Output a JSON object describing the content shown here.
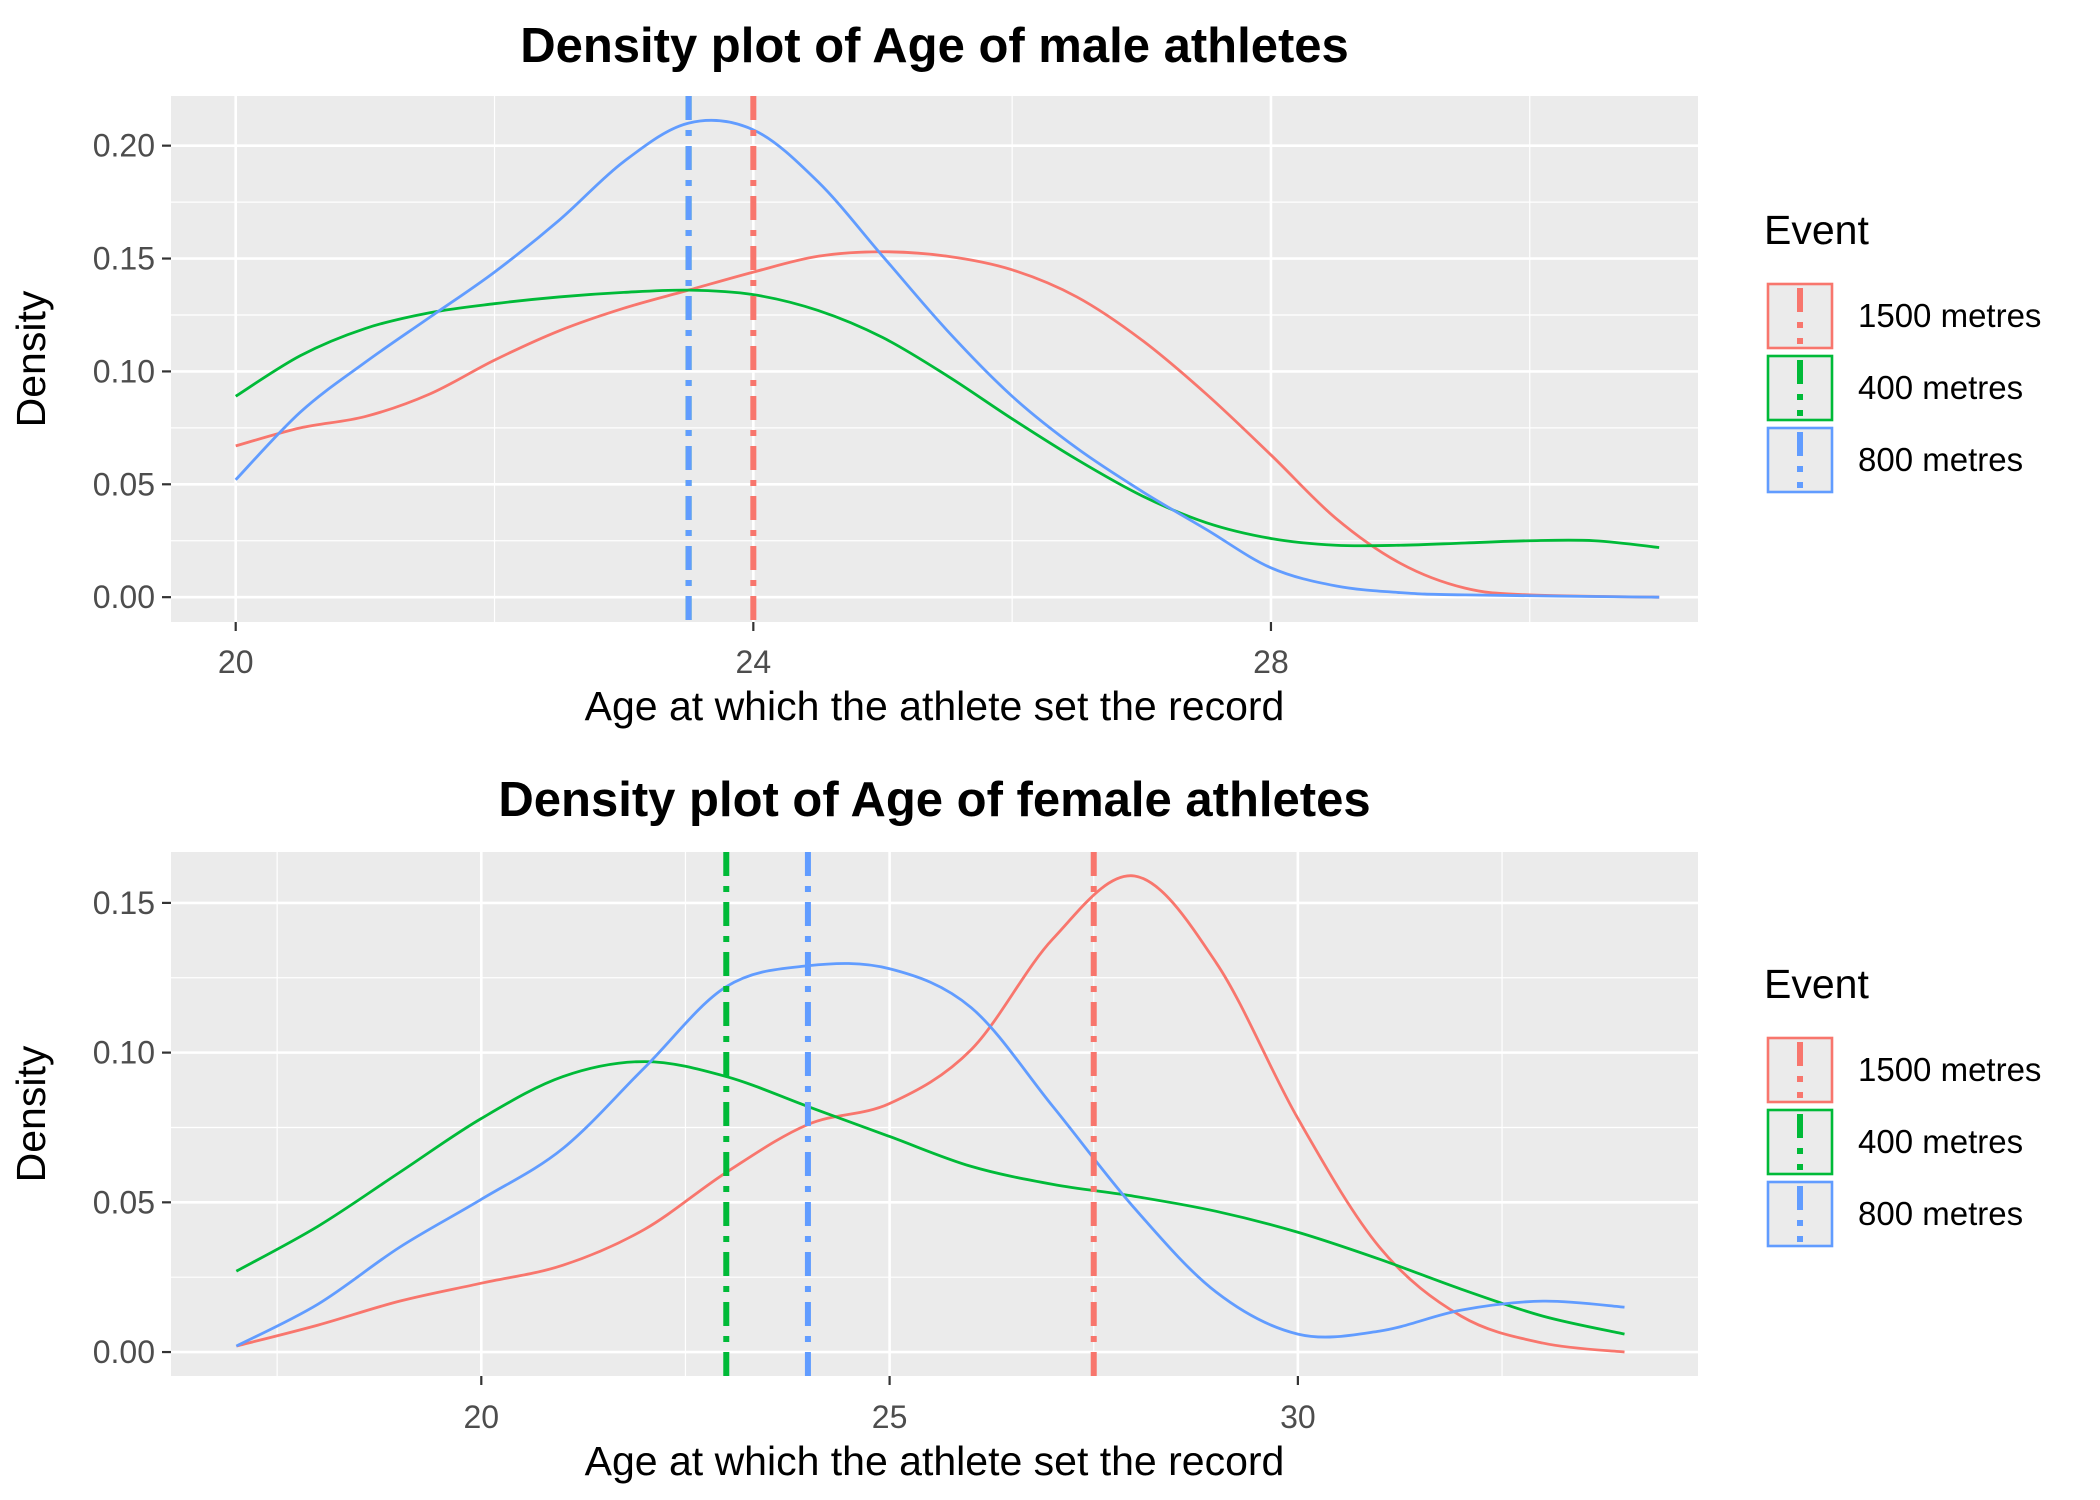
{
  "chart_data": [
    {
      "type": "line",
      "title": "Density plot of Age of male athletes",
      "xlabel": "Age at which the athlete set the record",
      "ylabel": "Density",
      "xlim": [
        19.5,
        31.3
      ],
      "ylim": [
        -0.011,
        0.222
      ],
      "xticks": [
        20,
        24,
        28
      ],
      "yticks": [
        0.0,
        0.05,
        0.1,
        0.15,
        0.2
      ],
      "ytick_labels": [
        "0.00",
        "0.05",
        "0.10",
        "0.15",
        "0.20"
      ],
      "grid": true,
      "legend_title": "Event",
      "legend_position": "right",
      "series": [
        {
          "name": "1500 metres",
          "color": "#F8766D",
          "points": [
            [
              20,
              0.067
            ],
            [
              20.5,
              0.075
            ],
            [
              21,
              0.08
            ],
            [
              21.5,
              0.09
            ],
            [
              22,
              0.105
            ],
            [
              22.5,
              0.118
            ],
            [
              23,
              0.128
            ],
            [
              23.5,
              0.136
            ],
            [
              24,
              0.144
            ],
            [
              24.5,
              0.151
            ],
            [
              25,
              0.153
            ],
            [
              25.5,
              0.151
            ],
            [
              26,
              0.145
            ],
            [
              26.5,
              0.133
            ],
            [
              27,
              0.114
            ],
            [
              27.5,
              0.09
            ],
            [
              28,
              0.063
            ],
            [
              28.5,
              0.035
            ],
            [
              29,
              0.015
            ],
            [
              29.5,
              0.004
            ],
            [
              30,
              0.001
            ],
            [
              31,
              0.0
            ]
          ],
          "mean": 24.0
        },
        {
          "name": "400 metres",
          "color": "#00BA38",
          "points": [
            [
              20,
              0.089
            ],
            [
              20.5,
              0.107
            ],
            [
              21,
              0.119
            ],
            [
              21.5,
              0.126
            ],
            [
              22,
              0.13
            ],
            [
              22.5,
              0.133
            ],
            [
              23,
              0.135
            ],
            [
              23.5,
              0.136
            ],
            [
              24,
              0.134
            ],
            [
              24.5,
              0.127
            ],
            [
              25,
              0.115
            ],
            [
              25.5,
              0.098
            ],
            [
              26,
              0.079
            ],
            [
              26.5,
              0.061
            ],
            [
              27,
              0.045
            ],
            [
              27.5,
              0.033
            ],
            [
              28,
              0.026
            ],
            [
              28.5,
              0.023
            ],
            [
              29,
              0.023
            ],
            [
              29.5,
              0.024
            ],
            [
              30,
              0.025
            ],
            [
              30.5,
              0.025
            ],
            [
              31,
              0.022
            ]
          ],
          "mean": 23.5
        },
        {
          "name": "800 metres",
          "color": "#619CFF",
          "points": [
            [
              20,
              0.052
            ],
            [
              20.5,
              0.082
            ],
            [
              21,
              0.104
            ],
            [
              21.5,
              0.124
            ],
            [
              22,
              0.144
            ],
            [
              22.5,
              0.167
            ],
            [
              23,
              0.193
            ],
            [
              23.5,
              0.21
            ],
            [
              24,
              0.207
            ],
            [
              24.5,
              0.184
            ],
            [
              25,
              0.151
            ],
            [
              25.5,
              0.118
            ],
            [
              26,
              0.089
            ],
            [
              26.5,
              0.066
            ],
            [
              27,
              0.047
            ],
            [
              27.5,
              0.03
            ],
            [
              28,
              0.013
            ],
            [
              28.5,
              0.005
            ],
            [
              29,
              0.002
            ],
            [
              29.5,
              0.001
            ],
            [
              31,
              0.0
            ]
          ],
          "mean": 23.5
        }
      ]
    },
    {
      "type": "line",
      "title": "Density plot of Age of female athletes",
      "xlabel": "Age at which the athlete set the record",
      "ylabel": "Density",
      "xlim": [
        16.2,
        34.9
      ],
      "ylim": [
        -0.008,
        0.167
      ],
      "xticks": [
        20,
        25,
        30
      ],
      "yticks": [
        0.0,
        0.05,
        0.1,
        0.15
      ],
      "ytick_labels": [
        "0.00",
        "0.05",
        "0.10",
        "0.15"
      ],
      "grid": true,
      "legend_title": "Event",
      "legend_position": "right",
      "series": [
        {
          "name": "1500 metres",
          "color": "#F8766D",
          "points": [
            [
              17,
              0.002
            ],
            [
              18,
              0.009
            ],
            [
              19,
              0.017
            ],
            [
              20,
              0.023
            ],
            [
              21,
              0.029
            ],
            [
              22,
              0.041
            ],
            [
              23,
              0.06
            ],
            [
              24,
              0.076
            ],
            [
              25,
              0.083
            ],
            [
              26,
              0.101
            ],
            [
              27,
              0.138
            ],
            [
              28,
              0.159
            ],
            [
              29,
              0.13
            ],
            [
              30,
              0.078
            ],
            [
              31,
              0.035
            ],
            [
              32,
              0.012
            ],
            [
              33,
              0.003
            ],
            [
              34,
              0.0
            ]
          ],
          "mean": 27.5
        },
        {
          "name": "400 metres",
          "color": "#00BA38",
          "points": [
            [
              17,
              0.027
            ],
            [
              18,
              0.042
            ],
            [
              19,
              0.06
            ],
            [
              20,
              0.078
            ],
            [
              21,
              0.092
            ],
            [
              22,
              0.097
            ],
            [
              23,
              0.092
            ],
            [
              24,
              0.082
            ],
            [
              25,
              0.072
            ],
            [
              26,
              0.062
            ],
            [
              27,
              0.056
            ],
            [
              28,
              0.052
            ],
            [
              29,
              0.047
            ],
            [
              30,
              0.04
            ],
            [
              31,
              0.031
            ],
            [
              32,
              0.021
            ],
            [
              33,
              0.012
            ],
            [
              34,
              0.006
            ]
          ],
          "mean": 23.0
        },
        {
          "name": "800 metres",
          "color": "#619CFF",
          "points": [
            [
              17,
              0.002
            ],
            [
              18,
              0.016
            ],
            [
              19,
              0.035
            ],
            [
              20,
              0.051
            ],
            [
              21,
              0.068
            ],
            [
              22,
              0.095
            ],
            [
              23,
              0.122
            ],
            [
              24,
              0.129
            ],
            [
              25,
              0.128
            ],
            [
              26,
              0.115
            ],
            [
              27,
              0.082
            ],
            [
              28,
              0.048
            ],
            [
              29,
              0.02
            ],
            [
              30,
              0.006
            ],
            [
              31,
              0.007
            ],
            [
              32,
              0.014
            ],
            [
              33,
              0.017
            ],
            [
              34,
              0.015
            ]
          ],
          "mean": 24.0
        }
      ]
    }
  ]
}
